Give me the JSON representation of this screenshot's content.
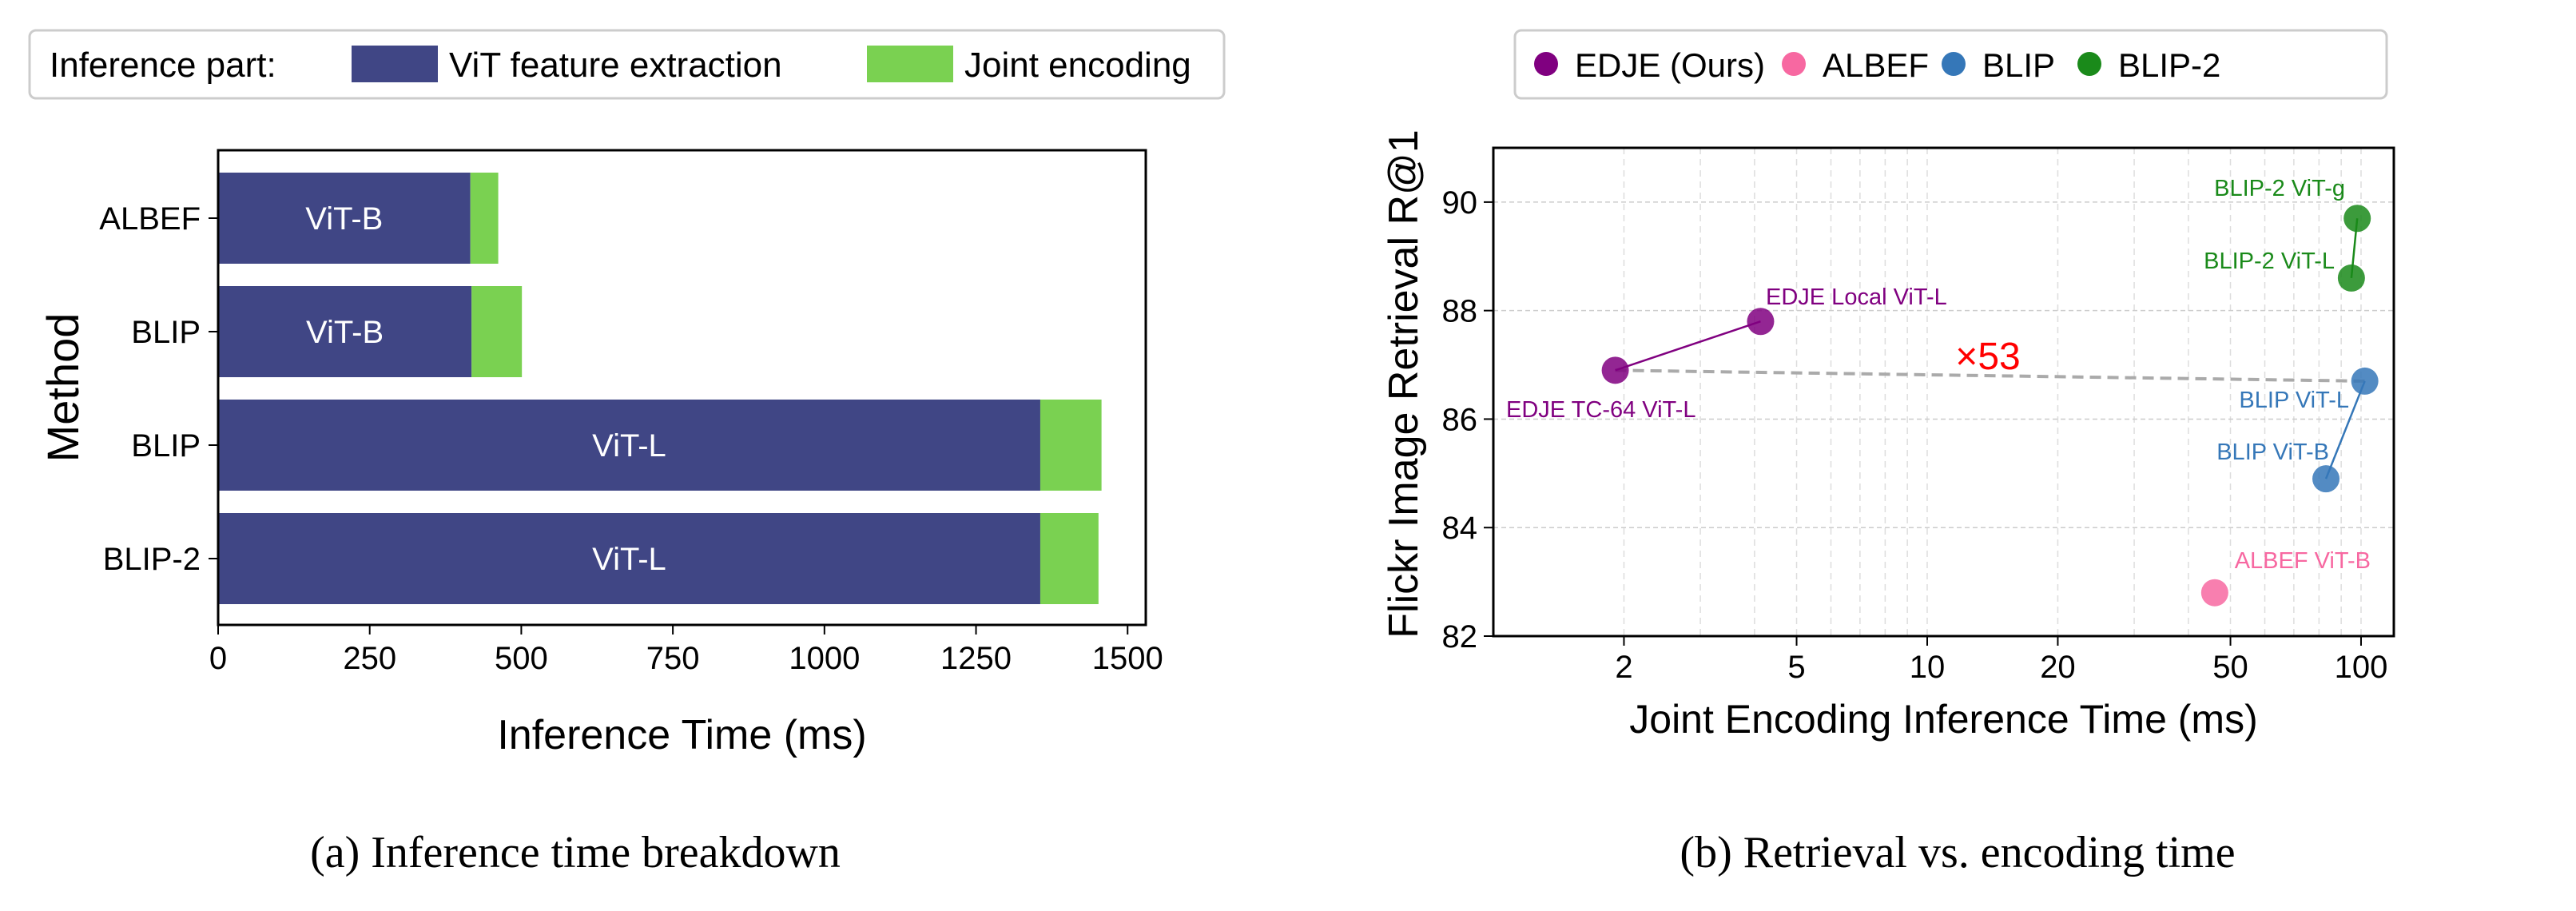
{
  "chart_data": [
    {
      "type": "bar",
      "orientation": "horizontal",
      "stacked": true,
      "caption": "(a) Inference time breakdown",
      "xlabel": "Inference Time (ms)",
      "ylabel": "Method",
      "xlim": [
        0,
        1530
      ],
      "xticks": [
        0,
        250,
        500,
        750,
        1000,
        1250,
        1500
      ],
      "grid": false,
      "legend": {
        "title": "Inference part:",
        "placement": "top"
      },
      "categories": [
        "ALBEF",
        "BLIP",
        "BLIP",
        "BLIP-2"
      ],
      "bar_labels": [
        "ViT-B",
        "ViT-B",
        "ViT-L",
        "ViT-L"
      ],
      "series": [
        {
          "name": "ViT feature extraction",
          "color": "#404685",
          "values": [
            416,
            418,
            1356,
            1356
          ]
        },
        {
          "name": "Joint encoding",
          "color": "#7ad151",
          "values": [
            46,
            83,
            101,
            96
          ]
        }
      ]
    },
    {
      "type": "scatter",
      "caption": "(b) Retrieval vs. encoding time",
      "xlabel": "Joint Encoding Inference Time (ms)",
      "ylabel": "Flickr Image Retrieval R@1",
      "xscale": "log",
      "xlim": [
        1.0,
        119
      ],
      "ylim": [
        82,
        91
      ],
      "xticks": [
        2,
        5,
        10,
        20,
        50,
        100
      ],
      "yticks": [
        82,
        84,
        86,
        88,
        90
      ],
      "grid": true,
      "legend": {
        "placement": "top"
      },
      "series": [
        {
          "name": "EDJE (Ours)",
          "color": "#800080",
          "points": [
            {
              "label": "EDJE TC-64 ViT-L",
              "x": 1.91,
              "y": 86.9
            },
            {
              "label": "EDJE Local ViT-L",
              "x": 4.13,
              "y": 87.8
            }
          ]
        },
        {
          "name": "ALBEF",
          "color": "#f768a1",
          "points": [
            {
              "label": "ALBEF ViT-B",
              "x": 46,
              "y": 82.8
            }
          ]
        },
        {
          "name": "BLIP",
          "color": "#3577b8",
          "points": [
            {
              "label": "BLIP ViT-L",
              "x": 102,
              "y": 86.7
            },
            {
              "label": "BLIP ViT-B",
              "x": 83,
              "y": 84.9
            }
          ]
        },
        {
          "name": "BLIP-2",
          "color": "#1a8a1a",
          "points": [
            {
              "label": "BLIP-2 ViT-g",
              "x": 98,
              "y": 89.7
            },
            {
              "label": "BLIP-2 ViT-L",
              "x": 95,
              "y": 88.6
            }
          ]
        }
      ],
      "annotation": {
        "text": "×53",
        "color": "#ff0000",
        "from": "EDJE TC-64 ViT-L",
        "to": "BLIP ViT-L"
      }
    }
  ]
}
